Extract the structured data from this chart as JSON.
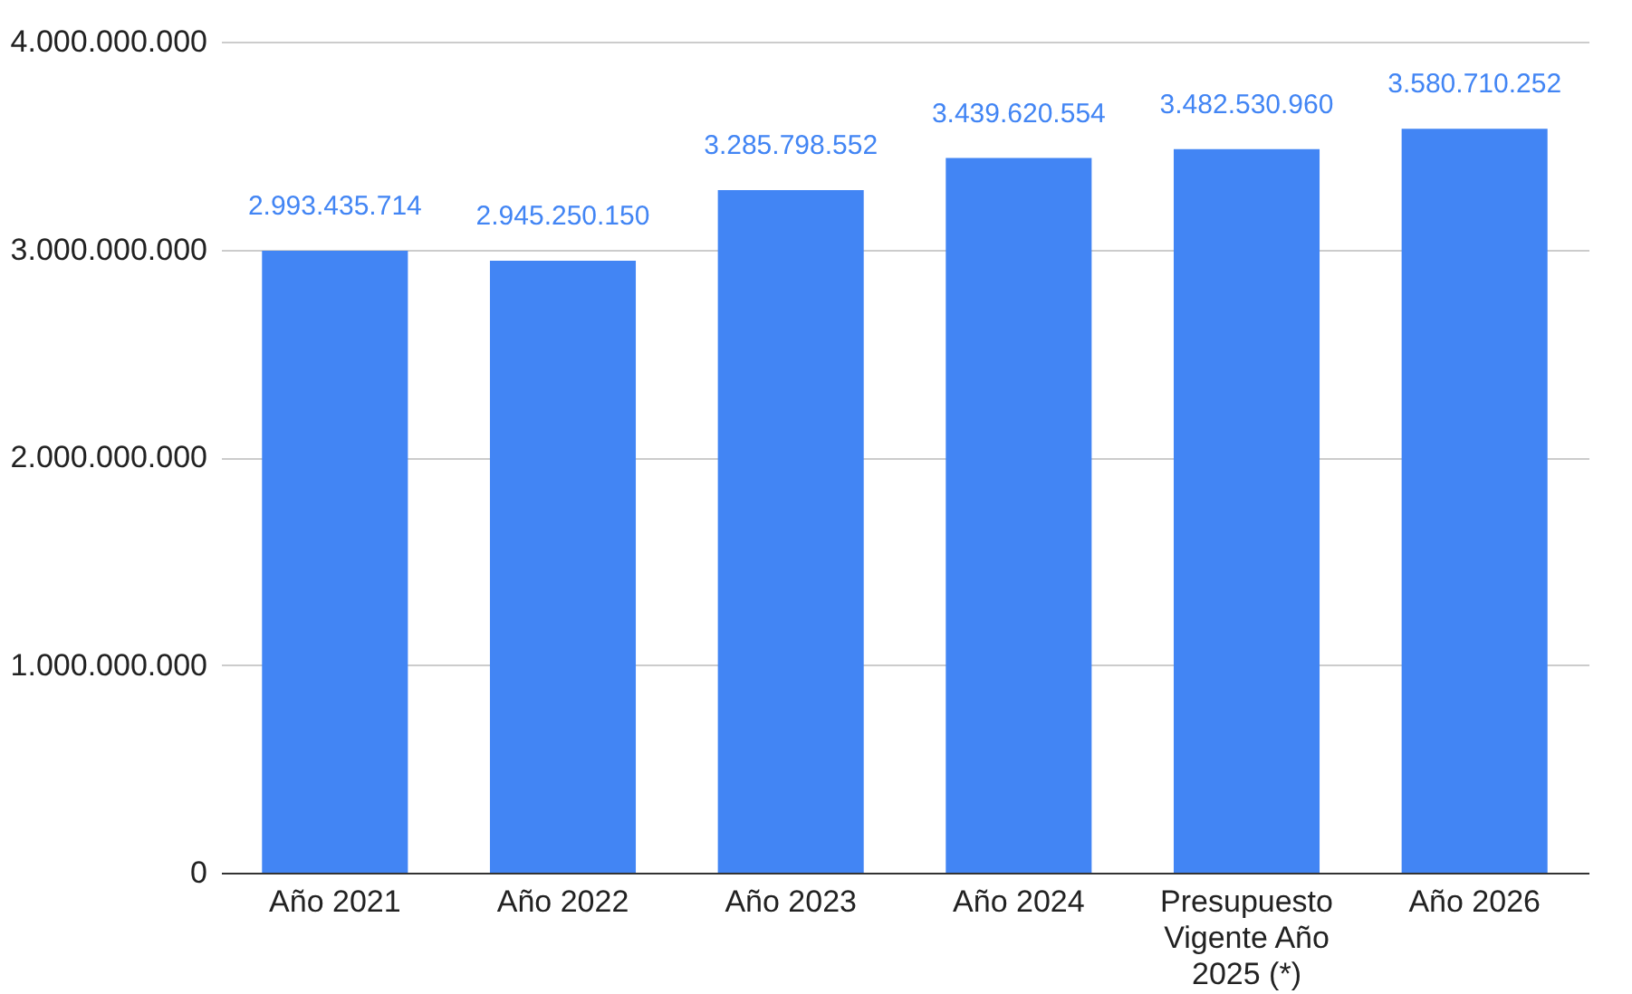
{
  "chart_data": {
    "type": "bar",
    "categories": [
      "Año 2021",
      "Año 2022",
      "Año 2023",
      "Año 2024",
      "Presupuesto Vigente Año 2025 (*)",
      "Año 2026"
    ],
    "values": [
      2993435714,
      2945250150,
      3285798552,
      3439620554,
      3482530960,
      3580710252
    ],
    "value_labels": [
      "2.993.435.714",
      "2.945.250.150",
      "3.285.798.552",
      "3.439.620.554",
      "3.482.530.960",
      "3.580.710.252"
    ],
    "color": "#4285f4",
    "ylim": [
      0,
      4000000000
    ],
    "yticks": [
      0,
      {
        "value": 1000000000,
        "label": "1.000.000.000"
      },
      {
        "value": 2000000000,
        "label": "2.000.000.000"
      },
      {
        "value": 3000000000,
        "label": "3.000.000.000"
      },
      {
        "value": 4000000000,
        "label": "4.000.000.000"
      }
    ],
    "grid": "y"
  }
}
